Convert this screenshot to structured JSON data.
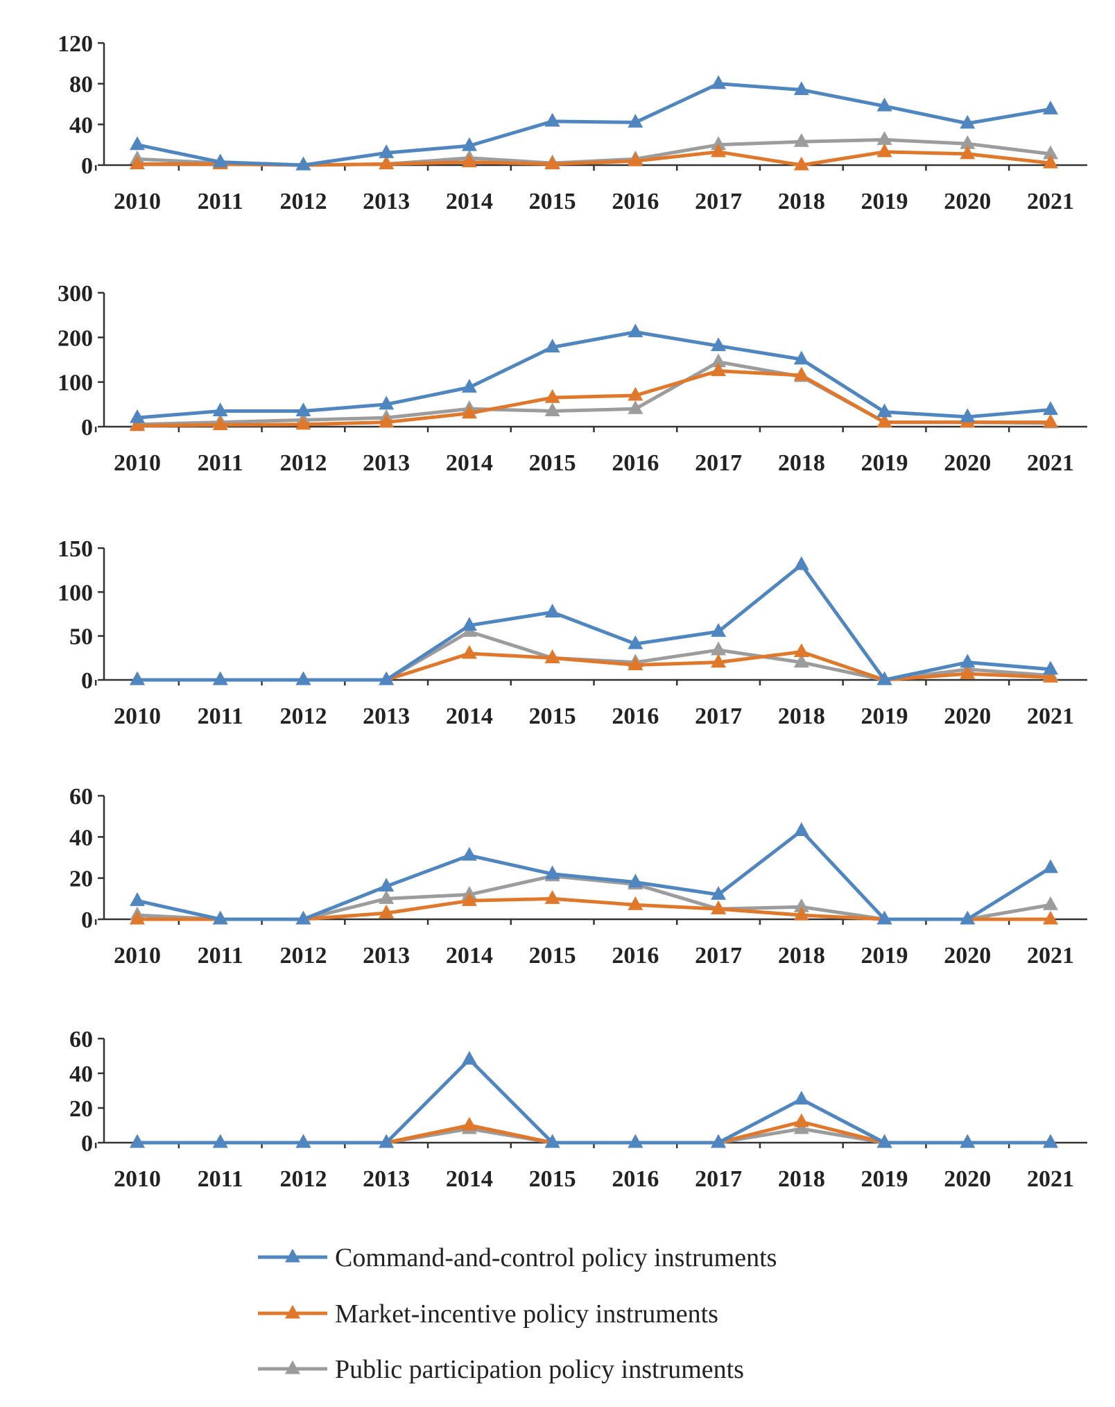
{
  "colors": {
    "command": "#4f86bf",
    "market": "#e0782b",
    "public": "#9c9c9c",
    "axis": "#333333"
  },
  "legend": [
    {
      "key": "command",
      "label": "Command-and-control policy instruments"
    },
    {
      "key": "market",
      "label": "Market-incentive policy instruments"
    },
    {
      "key": "public",
      "label": "Public participation policy instruments"
    }
  ],
  "chart_data": [
    {
      "type": "line",
      "title": "",
      "x": [
        "2010",
        "2011",
        "2012",
        "2013",
        "2014",
        "2015",
        "2016",
        "2017",
        "2018",
        "2019",
        "2020",
        "2021"
      ],
      "ylim": [
        0,
        120
      ],
      "yticks": [
        0,
        40,
        80,
        120
      ],
      "series": [
        {
          "key": "command",
          "name": "Command-and-control policy instruments",
          "values": [
            20,
            3,
            0,
            12,
            19,
            43,
            42,
            80,
            74,
            58,
            41,
            55
          ]
        },
        {
          "key": "market",
          "name": "Market-incentive policy instruments",
          "values": [
            1,
            1,
            0,
            1,
            3,
            1,
            4,
            13,
            0,
            13,
            11,
            2
          ]
        },
        {
          "key": "public",
          "name": "Public participation policy instruments",
          "values": [
            6,
            2,
            0,
            1,
            7,
            2,
            6,
            20,
            23,
            25,
            21,
            11
          ]
        }
      ]
    },
    {
      "type": "line",
      "title": "",
      "x": [
        "2010",
        "2011",
        "2012",
        "2013",
        "2014",
        "2015",
        "2016",
        "2017",
        "2018",
        "2019",
        "2020",
        "2021"
      ],
      "ylim": [
        0,
        300
      ],
      "yticks": [
        0,
        100,
        200,
        300
      ],
      "series": [
        {
          "key": "command",
          "name": "Command-and-control policy instruments",
          "values": [
            20,
            35,
            35,
            50,
            88,
            178,
            212,
            181,
            151,
            33,
            22,
            38
          ]
        },
        {
          "key": "market",
          "name": "Market-incentive policy instruments",
          "values": [
            2,
            4,
            5,
            10,
            30,
            65,
            70,
            125,
            115,
            10,
            10,
            10
          ]
        },
        {
          "key": "public",
          "name": "Public participation policy instruments",
          "values": [
            5,
            10,
            15,
            20,
            40,
            35,
            40,
            145,
            112,
            10,
            10,
            8
          ]
        }
      ]
    },
    {
      "type": "line",
      "title": "",
      "x": [
        "2010",
        "2011",
        "2012",
        "2013",
        "2014",
        "2015",
        "2016",
        "2017",
        "2018",
        "2019",
        "2020",
        "2021"
      ],
      "ylim": [
        0,
        150
      ],
      "yticks": [
        0,
        50,
        100,
        150
      ],
      "series": [
        {
          "key": "command",
          "name": "Command-and-control policy instruments",
          "values": [
            0,
            0,
            0,
            0,
            62,
            77,
            41,
            55,
            131,
            0,
            20,
            12
          ]
        },
        {
          "key": "market",
          "name": "Market-incentive policy instruments",
          "values": [
            0,
            0,
            0,
            0,
            30,
            25,
            17,
            20,
            32,
            0,
            7,
            3
          ]
        },
        {
          "key": "public",
          "name": "Public participation policy instruments",
          "values": [
            0,
            0,
            0,
            0,
            55,
            25,
            20,
            34,
            20,
            0,
            12,
            5
          ]
        }
      ]
    },
    {
      "type": "line",
      "title": "",
      "x": [
        "2010",
        "2011",
        "2012",
        "2013",
        "2014",
        "2015",
        "2016",
        "2017",
        "2018",
        "2019",
        "2020",
        "2021"
      ],
      "ylim": [
        0,
        60
      ],
      "yticks": [
        0,
        20,
        40,
        60
      ],
      "series": [
        {
          "key": "command",
          "name": "Command-and-control policy instruments",
          "values": [
            9,
            0,
            0,
            16,
            31,
            22,
            18,
            12,
            43,
            0,
            0,
            25
          ]
        },
        {
          "key": "market",
          "name": "Market-incentive policy instruments",
          "values": [
            0,
            0,
            0,
            3,
            9,
            10,
            7,
            5,
            2,
            0,
            0,
            0
          ]
        },
        {
          "key": "public",
          "name": "Public participation policy instruments",
          "values": [
            2,
            0,
            0,
            10,
            12,
            21,
            17,
            5,
            6,
            0,
            0,
            7
          ]
        }
      ]
    },
    {
      "type": "line",
      "title": "",
      "x": [
        "2010",
        "2011",
        "2012",
        "2013",
        "2014",
        "2015",
        "2016",
        "2017",
        "2018",
        "2019",
        "2020",
        "2021"
      ],
      "ylim": [
        0,
        60
      ],
      "yticks": [
        0,
        20,
        40,
        60
      ],
      "series": [
        {
          "key": "command",
          "name": "Command-and-control policy instruments",
          "values": [
            0,
            0,
            0,
            0,
            48,
            0,
            0,
            0,
            25,
            0,
            0,
            0
          ]
        },
        {
          "key": "market",
          "name": "Market-incentive policy instruments",
          "values": [
            0,
            0,
            0,
            0,
            10,
            0,
            0,
            0,
            12,
            0,
            0,
            0
          ]
        },
        {
          "key": "public",
          "name": "Public participation policy instruments",
          "values": [
            0,
            0,
            0,
            0,
            8,
            0,
            0,
            0,
            8,
            0,
            0,
            0
          ]
        }
      ]
    }
  ]
}
